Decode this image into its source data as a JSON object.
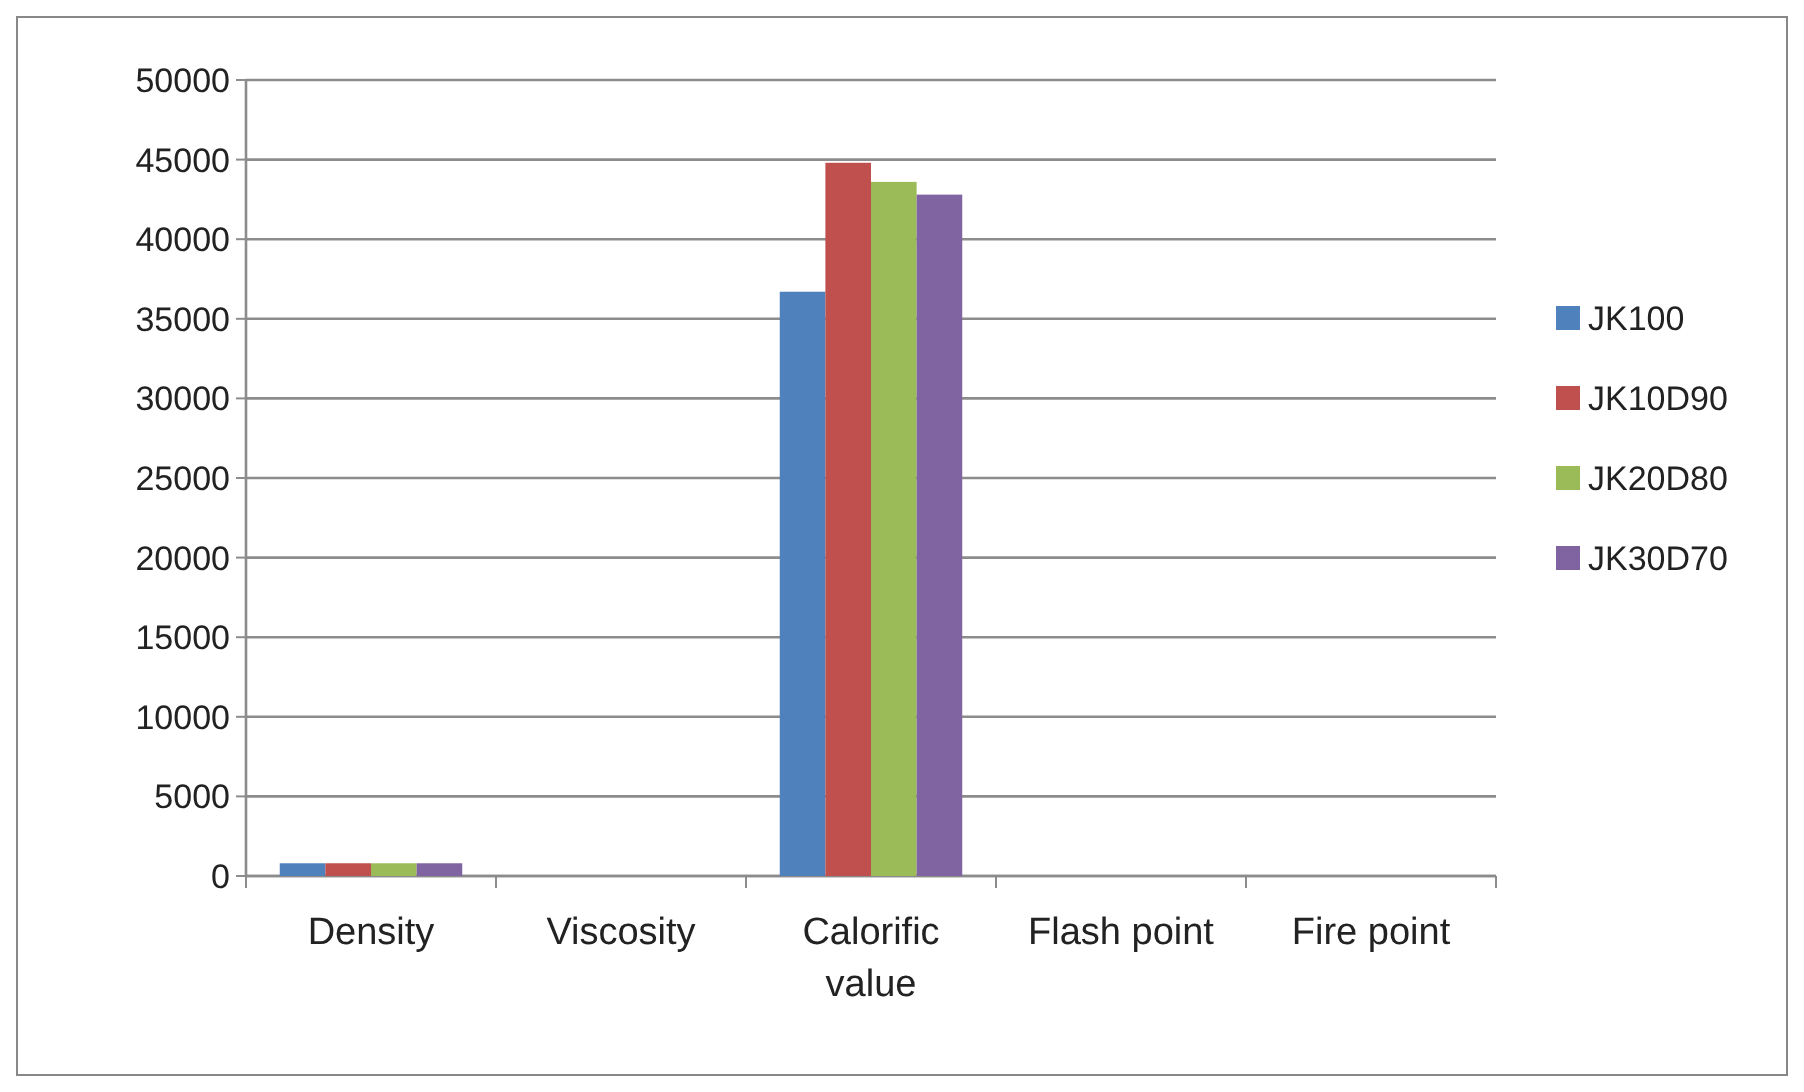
{
  "chart_data": {
    "type": "bar",
    "categories": [
      "Density",
      "Viscosity",
      "Calorific value",
      "Flash point",
      "Fire point"
    ],
    "series": [
      {
        "name": "JK100",
        "color": "#4f81bd",
        "values": [
          800,
          0,
          36700,
          0,
          0
        ]
      },
      {
        "name": "JK10D90",
        "color": "#c0504d",
        "values": [
          800,
          0,
          44800,
          0,
          0
        ]
      },
      {
        "name": "JK20D80",
        "color": "#9bbb59",
        "values": [
          800,
          0,
          43600,
          0,
          0
        ]
      },
      {
        "name": "JK30D70",
        "color": "#8064a2",
        "values": [
          800,
          0,
          42800,
          0,
          0
        ]
      }
    ],
    "ylim": [
      0,
      50000
    ],
    "yticks": [
      0,
      5000,
      10000,
      15000,
      20000,
      25000,
      30000,
      35000,
      40000,
      45000,
      50000
    ],
    "grid": "y",
    "legend": "right"
  }
}
